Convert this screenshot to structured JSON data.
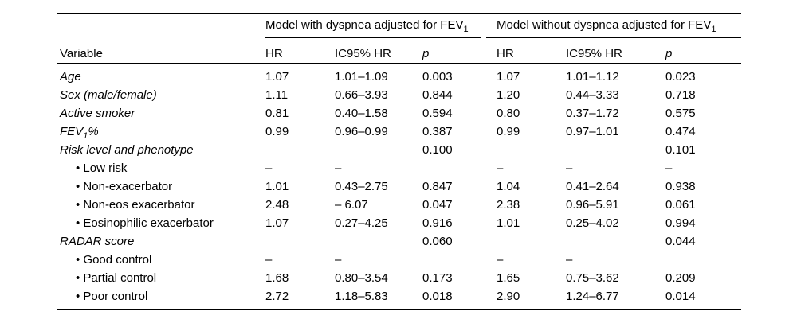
{
  "page": {
    "background_color": "#ffffff",
    "text_color": "#000000"
  },
  "table": {
    "bullet_char": "•",
    "header": {
      "variable_label": "Variable",
      "groups": [
        {
          "label": "Model with dyspnea adjusted for FEV",
          "subscript": "1"
        },
        {
          "label": "Model without dyspnea adjusted for FEV",
          "subscript": "1"
        }
      ],
      "subcolumns": {
        "hr": "HR",
        "ic95": "IC95% HR",
        "p": "p"
      }
    },
    "rows": [
      {
        "label": "Age",
        "italic": true,
        "indent": false,
        "cells": [
          "1.07",
          "1.01–1.09",
          "0.003",
          "1.07",
          "1.01–1.12",
          "0.023"
        ]
      },
      {
        "label": "Sex (male/female)",
        "italic": true,
        "indent": false,
        "cells": [
          "1.11",
          "0.66–3.93",
          "0.844",
          "1.20",
          "0.44–3.33",
          "0.718"
        ]
      },
      {
        "label": "Active smoker",
        "italic": true,
        "indent": false,
        "cells": [
          "0.81",
          "0.40–1.58",
          "0.594",
          "0.80",
          "0.37–1.72",
          "0.575"
        ]
      },
      {
        "label_prefix": "FEV",
        "label_subscript": "1",
        "label_suffix": "%",
        "italic": true,
        "indent": false,
        "cells": [
          "0.99",
          "0.96–0.99",
          "0.387",
          "0.99",
          "0.97–1.01",
          "0.474"
        ]
      },
      {
        "label": "Risk level and phenotype",
        "italic": true,
        "indent": false,
        "cells": [
          "",
          "",
          "0.100",
          "",
          "",
          "0.101"
        ]
      },
      {
        "label": "Low risk",
        "italic": false,
        "indent": true,
        "cells": [
          "–",
          "–",
          "",
          "–",
          "–",
          "–"
        ]
      },
      {
        "label": "Non-exacerbator",
        "italic": false,
        "indent": true,
        "cells": [
          "1.01",
          "0.43–2.75",
          "0.847",
          "1.04",
          "0.41–2.64",
          "0.938"
        ]
      },
      {
        "label": "Non-eos exacerbator",
        "italic": false,
        "indent": true,
        "cells": [
          "2.48",
          "– 6.07",
          "0.047",
          "2.38",
          "0.96–5.91",
          "0.061"
        ]
      },
      {
        "label": "Eosinophilic exacerbator",
        "italic": false,
        "indent": true,
        "cells": [
          "1.07",
          "0.27–4.25",
          "0.916",
          "1.01",
          "0.25–4.02",
          "0.994"
        ]
      },
      {
        "label": "RADAR score",
        "italic": true,
        "indent": false,
        "cells": [
          "",
          "",
          "0.060",
          "",
          "",
          "0.044"
        ]
      },
      {
        "label": "Good control",
        "italic": false,
        "indent": true,
        "cells": [
          "–",
          "–",
          "",
          "–",
          "–",
          ""
        ]
      },
      {
        "label": "Partial control",
        "italic": false,
        "indent": true,
        "cells": [
          "1.68",
          "0.80–3.54",
          "0.173",
          "1.65",
          "0.75–3.62",
          "0.209"
        ]
      },
      {
        "label": "Poor control",
        "italic": false,
        "indent": true,
        "cells": [
          "2.72",
          "1.18–5.83",
          "0.018",
          "2.90",
          "1.24–6.77",
          "0.014"
        ]
      }
    ]
  }
}
